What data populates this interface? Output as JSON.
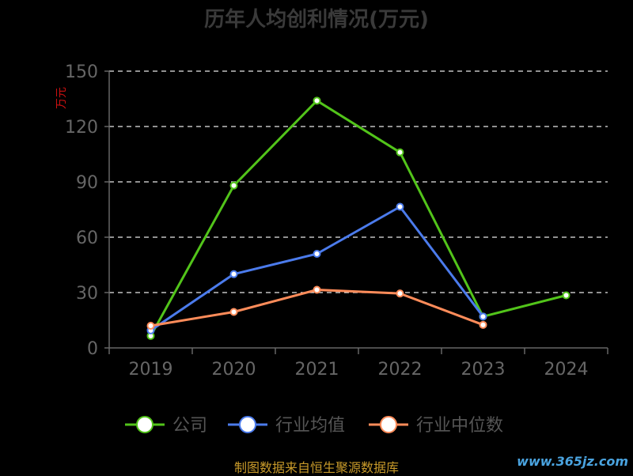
{
  "chart_data": {
    "type": "line",
    "title": "历年人均创利情况(万元)",
    "ylabel": "万元",
    "ylim": [
      0,
      150
    ],
    "yticks": [
      0,
      30,
      60,
      90,
      120,
      150
    ],
    "categories": [
      "2019",
      "2020",
      "2021",
      "2022",
      "2023",
      "2024"
    ],
    "grid": true,
    "legend_position": "bottom",
    "series": [
      {
        "name": "公司",
        "color": "#52c41a",
        "values": [
          6.5,
          88,
          134,
          106,
          17,
          28.5
        ]
      },
      {
        "name": "行业均值",
        "color": "#4b7bec",
        "values": [
          9.5,
          40,
          51,
          76.5,
          17,
          null
        ]
      },
      {
        "name": "行业中位数",
        "color": "#ff8c5a",
        "values": [
          12,
          19.5,
          31.5,
          29.5,
          12.5,
          null
        ]
      }
    ]
  },
  "source_text": "制图数据来自恒生聚源数据库",
  "watermark_text": "www.365jz.com"
}
